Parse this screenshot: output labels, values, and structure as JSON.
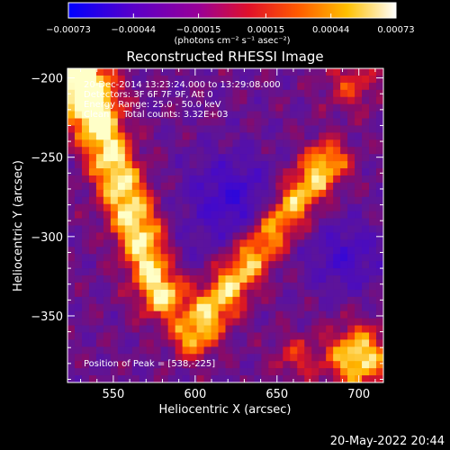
{
  "chart_data": {
    "type": "heatmap",
    "title": "Reconstructed RHESSI Image",
    "xlabel": "Heliocentric X (arcsec)",
    "ylabel": "Heliocentric Y (arcsec)",
    "xlim": [
      522,
      715
    ],
    "ylim": [
      -392,
      -194
    ],
    "xticks": [
      550,
      600,
      650,
      700
    ],
    "yticks": [
      -200,
      -250,
      -300,
      -350
    ],
    "colorbar": {
      "range": [
        -0.00073,
        0.00073
      ],
      "ticks": [
        -0.00073,
        -0.00044,
        -0.00015,
        0.00015,
        0.00044,
        0.00073
      ],
      "tick_labels": [
        "−0.00073",
        "−0.00044",
        "−0.00015",
        "0.00015",
        "0.00044",
        "0.00073"
      ],
      "unit": "(photons cm⁻² s⁻¹ asec⁻²)",
      "colors": [
        "#0000ff",
        "#6a00b0",
        "#b0006a",
        "#ff2a00",
        "#ffb000",
        "#ffffff"
      ]
    },
    "annotations": [
      "20-Dec-2014 13:23:24.000 to 13:29:08.000",
      "Detectors: 3F 6F 7F 9F, Att 0",
      "Energy Range: 25.0 - 50.0 keV",
      "Clean     Total counts: 3.32E+03"
    ],
    "peak": {
      "label": "Position of Peak = [538,-225]",
      "x": 538,
      "y": -225
    },
    "features": [
      {
        "name": "upper-left bright arc",
        "x": 540,
        "y": -240,
        "level": 0.85
      },
      {
        "name": "central negative region",
        "x": 622,
        "y": -278,
        "level": -0.35
      },
      {
        "name": "diagonal bright ribbon",
        "x": 640,
        "y": -300,
        "level": 0.7
      },
      {
        "name": "lower-right bright lobe",
        "x": 700,
        "y": -380,
        "level": 0.8
      },
      {
        "name": "right negative region",
        "x": 690,
        "y": -330,
        "level": -0.3
      }
    ]
  },
  "footer": {
    "timestamp": "20-May-2022 20:44"
  }
}
